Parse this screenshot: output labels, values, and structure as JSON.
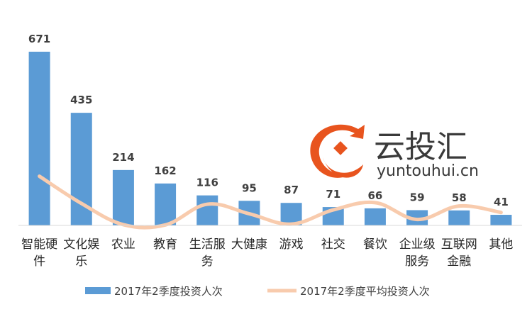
{
  "chart_data": {
    "type": "bar",
    "categories": [
      [
        "智能硬",
        "件"
      ],
      [
        "文化娱",
        "乐"
      ],
      [
        "农业"
      ],
      [
        "教育"
      ],
      [
        "生活服",
        "务"
      ],
      [
        "大健康"
      ],
      [
        "游戏"
      ],
      [
        "社交"
      ],
      [
        "餐饮"
      ],
      [
        "企业级",
        "服务"
      ],
      [
        "互联网",
        "金融"
      ],
      [
        "其他"
      ]
    ],
    "series": [
      {
        "name": "2017年2季度投资人次",
        "type": "bar",
        "color": "#5b9bd5",
        "values": [
          671,
          435,
          214,
          162,
          116,
          95,
          87,
          71,
          66,
          59,
          58,
          41
        ]
      },
      {
        "name": "2017年2季度平均投资人次",
        "type": "line",
        "color": "#f8cbad",
        "values": [
          190,
          85,
          3,
          2,
          82,
          45,
          5,
          60,
          88,
          23,
          75,
          50
        ]
      }
    ],
    "ylim": [
      0,
      690
    ],
    "grid": false,
    "legend_position": "bottom"
  },
  "watermark": {
    "text": "云投汇",
    "url": "yuntouhui.cn"
  }
}
